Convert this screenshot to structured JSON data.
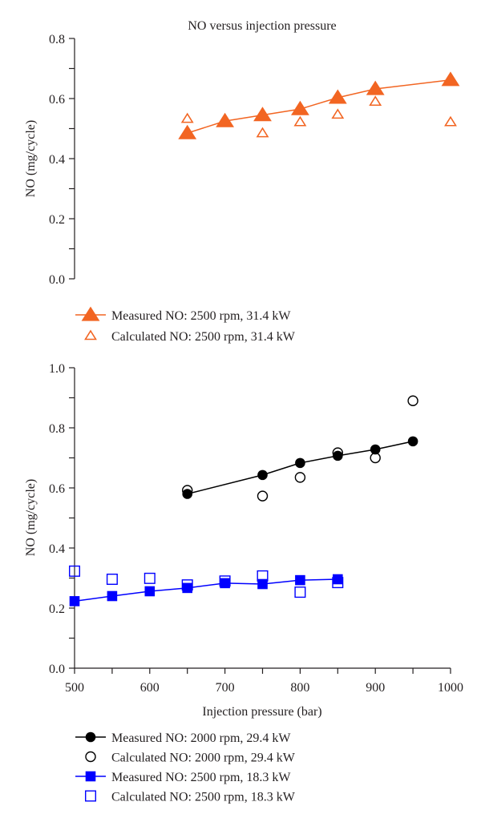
{
  "chart_data": [
    {
      "type": "line",
      "title": "NO versus injection pressure",
      "xlabel": "",
      "ylabel": "NO (mg/cycle)",
      "xlim": [
        500,
        1000
      ],
      "ylim": [
        0.0,
        0.8
      ],
      "yticks": [
        "0.0",
        "0.2",
        "0.4",
        "0.6",
        "0.8"
      ],
      "yminor_step": 0.1,
      "grid": false,
      "legend_position": "bottom-left",
      "series": [
        {
          "name": "Measured NO: 2500 rpm, 31.4 kW",
          "marker": "filled-triangle",
          "line": true,
          "color": "#F26522",
          "x": [
            650,
            700,
            750,
            800,
            850,
            900,
            1000
          ],
          "y": [
            0.485,
            0.525,
            0.545,
            0.565,
            0.603,
            0.632,
            0.662
          ]
        },
        {
          "name": "Calculated NO: 2500 rpm, 31.4 kW",
          "marker": "open-triangle",
          "line": false,
          "color": "#F26522",
          "x": [
            650,
            750,
            800,
            850,
            900,
            1000
          ],
          "y": [
            0.533,
            0.485,
            0.522,
            0.547,
            0.59,
            0.522
          ]
        }
      ]
    },
    {
      "type": "line",
      "title": "",
      "xlabel": "Injection pressure (bar)",
      "ylabel": "NO (mg/cycle)",
      "xlim": [
        500,
        1000
      ],
      "ylim": [
        0.0,
        1.0
      ],
      "xticks": [
        "500",
        "600",
        "700",
        "800",
        "900",
        "1000"
      ],
      "xminor_step": 50,
      "yticks": [
        "0.0",
        "0.2",
        "0.4",
        "0.6",
        "0.8",
        "1.0"
      ],
      "yminor_step": 0.1,
      "grid": false,
      "legend_position": "bottom-left",
      "series": [
        {
          "name": "Measured NO: 2000 rpm, 29.4 kW",
          "marker": "filled-circle",
          "line": true,
          "color": "#000000",
          "x": [
            650,
            750,
            800,
            850,
            900,
            950
          ],
          "y": [
            0.58,
            0.643,
            0.683,
            0.707,
            0.728,
            0.755
          ]
        },
        {
          "name": "Calculated NO: 2000 rpm, 29.4 kW",
          "marker": "open-circle",
          "line": false,
          "color": "#000000",
          "x": [
            650,
            750,
            800,
            850,
            900,
            950
          ],
          "y": [
            0.592,
            0.573,
            0.635,
            0.717,
            0.7,
            0.89
          ]
        },
        {
          "name": "Measured NO: 2500 rpm, 18.3 kW",
          "marker": "filled-square",
          "line": true,
          "color": "#0000FF",
          "x": [
            500,
            550,
            600,
            650,
            700,
            750,
            800,
            850
          ],
          "y": [
            0.223,
            0.24,
            0.256,
            0.267,
            0.283,
            0.28,
            0.293,
            0.296
          ]
        },
        {
          "name": "Calculated NO: 2500 rpm, 18.3 kW",
          "marker": "open-square",
          "line": false,
          "color": "#0000FF",
          "x": [
            500,
            550,
            600,
            650,
            700,
            750,
            800,
            850
          ],
          "y": [
            0.323,
            0.296,
            0.299,
            0.277,
            0.29,
            0.307,
            0.253,
            0.285
          ]
        }
      ]
    }
  ]
}
